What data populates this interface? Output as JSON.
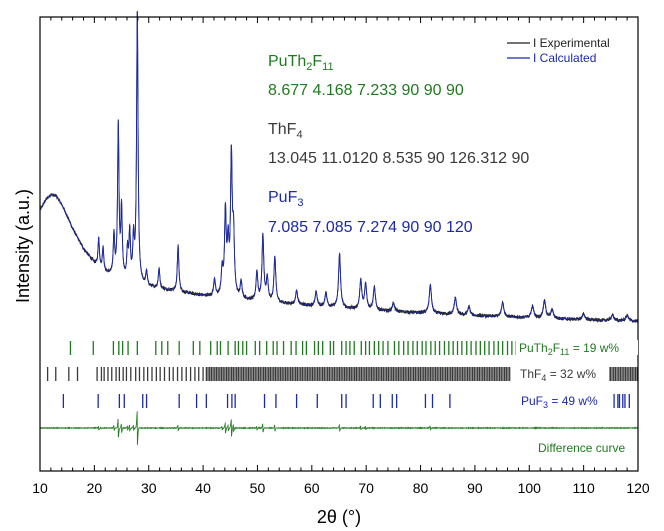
{
  "chart_data": {
    "type": "line",
    "xlabel": "2θ (°)",
    "ylabel": "Intensity (a.u.)",
    "xlim": [
      10,
      120
    ],
    "x_ticks": [
      10,
      20,
      30,
      40,
      50,
      60,
      70,
      80,
      90,
      100,
      110,
      120
    ],
    "y_ticks_labeled": false,
    "legend": {
      "placement": "top-right",
      "entries": [
        {
          "label": "I Experimental",
          "color": "#222222"
        },
        {
          "label": "I Calculated",
          "color": "#1c2aa8"
        }
      ]
    },
    "phases": [
      {
        "formula_main": "PuTh",
        "formula_sub1": "2",
        "formula_mid": "F",
        "formula_sub2": "11",
        "cell": "8.677 4.168 7.233 90 90 90",
        "color": "#1f7a1f",
        "tick_label_main": "PuTh",
        "tick_label_sub1": "2",
        "tick_label_mid": "F",
        "tick_label_sub2": "11",
        "fraction_text": " = 19 w%"
      },
      {
        "formula_main": "ThF",
        "formula_sub1": "4",
        "cell": "13.045 11.0120 8.535 90 126.312 90",
        "color": "#3a3a3a",
        "tick_label_main": "ThF",
        "tick_label_sub1": "4",
        "fraction_text": " = 32 w%"
      },
      {
        "formula_main": "PuF",
        "formula_sub1": "3",
        "cell": "7.085 7.085 7.274 90 90 120",
        "color": "#1c2aa8",
        "tick_label_main": "PuF",
        "tick_label_sub1": "3",
        "fraction_text": " = 49 w%"
      }
    ],
    "difference_label": "Difference curve",
    "series": [
      {
        "name": "I Experimental",
        "color": "#222222"
      },
      {
        "name": "I Calculated",
        "color": "#1c2aa8",
        "background": [
          [
            10,
            0.42
          ],
          [
            11,
            0.455
          ],
          [
            12,
            0.475
          ],
          [
            13,
            0.47
          ],
          [
            14,
            0.44
          ],
          [
            15,
            0.4
          ],
          [
            16,
            0.355
          ],
          [
            18,
            0.285
          ],
          [
            20,
            0.235
          ],
          [
            22,
            0.2
          ],
          [
            25,
            0.175
          ],
          [
            30,
            0.15
          ],
          [
            35,
            0.135
          ],
          [
            40,
            0.12
          ],
          [
            50,
            0.1
          ],
          [
            60,
            0.085
          ],
          [
            70,
            0.07
          ],
          [
            80,
            0.06
          ],
          [
            90,
            0.05
          ],
          [
            100,
            0.043
          ],
          [
            110,
            0.036
          ],
          [
            120,
            0.03
          ]
        ],
        "peaks": [
          [
            20.8,
            0.1
          ],
          [
            21.6,
            0.08
          ],
          [
            23.6,
            0.14
          ],
          [
            24.4,
            0.53
          ],
          [
            25.0,
            0.24
          ],
          [
            26.1,
            0.1
          ],
          [
            26.5,
            0.16
          ],
          [
            27.2,
            0.14
          ],
          [
            27.9,
            0.95
          ],
          [
            29.6,
            0.05
          ],
          [
            31.9,
            0.07
          ],
          [
            35.4,
            0.16
          ],
          [
            42.1,
            0.06
          ],
          [
            43.5,
            0.09
          ],
          [
            44.1,
            0.29
          ],
          [
            44.6,
            0.17
          ],
          [
            45.2,
            0.48
          ],
          [
            45.6,
            0.2
          ],
          [
            47.0,
            0.06
          ],
          [
            49.9,
            0.1
          ],
          [
            51.0,
            0.23
          ],
          [
            51.8,
            0.08
          ],
          [
            53.2,
            0.16
          ],
          [
            57.2,
            0.05
          ],
          [
            60.8,
            0.05
          ],
          [
            62.6,
            0.05
          ],
          [
            65.1,
            0.19
          ],
          [
            69.0,
            0.1
          ],
          [
            69.9,
            0.09
          ],
          [
            71.5,
            0.08
          ],
          [
            75.0,
            0.03
          ],
          [
            81.8,
            0.1
          ],
          [
            86.4,
            0.06
          ],
          [
            88.9,
            0.03
          ],
          [
            95.1,
            0.05
          ],
          [
            100.6,
            0.04
          ],
          [
            102.8,
            0.06
          ],
          [
            104.2,
            0.03
          ],
          [
            110.0,
            0.02
          ],
          [
            115.3,
            0.02
          ],
          [
            118.0,
            0.02
          ]
        ]
      }
    ],
    "reflections": [
      [
        15.6,
        19.8,
        23.5,
        24.5,
        25.2,
        26.2,
        27.9,
        31.3,
        32.4,
        33.5,
        35.6,
        38.2,
        39.4,
        41.4,
        42.6,
        43.2,
        44.6,
        45.9,
        46.5,
        47.3,
        48.0,
        49.6,
        50.4,
        51.7,
        52.9,
        53.6,
        54.8,
        56.2,
        57.1,
        58.3,
        59.0,
        60.5,
        61.2,
        62.0,
        63.4,
        64.0,
        65.5,
        66.3,
        67.0,
        67.8,
        69.1,
        69.9,
        70.6,
        71.5,
        72.3,
        73.1,
        74.0,
        75.2,
        76.0,
        76.9,
        77.7,
        78.6,
        79.4,
        80.3,
        81.0,
        81.9,
        82.7,
        83.5,
        84.4,
        85.2,
        86.0,
        86.8,
        87.6,
        88.5,
        89.3,
        90.2,
        91.0,
        91.8,
        92.6,
        93.5,
        94.3,
        95.1,
        96.0,
        96.8,
        97.6
      ],
      [
        11.4,
        12.9,
        15.3,
        16.9,
        20.5,
        21.3,
        21.8,
        22.5,
        23.2,
        24.0,
        24.6,
        25.3,
        25.9,
        26.7,
        27.6,
        28.3,
        29.1,
        29.8,
        30.6,
        31.4,
        32.1,
        32.9,
        33.8,
        34.5,
        35.3,
        36.1,
        36.9,
        37.7,
        38.5,
        39.2,
        40.0
      ],
      [
        14.3,
        20.7,
        24.6,
        25.5,
        28.9,
        29.6,
        35.6,
        38.8,
        40.6,
        44.5,
        45.3,
        45.9,
        51.3,
        53.4,
        57.2,
        61.0,
        65.5,
        66.3,
        71.3,
        72.6,
        74.8,
        75.6,
        80.9,
        82.2,
        85.4
      ]
    ],
    "reflections_dense_ranges": [
      [],
      [
        [
          40.6,
          96.6
        ],
        [
          111.5,
          120.0
        ]
      ],
      []
    ],
    "reflections_dense_step": [
      0,
      0.31,
      0
    ],
    "reflections_extra_tail": [
      [],
      [],
      [
        113.3,
        114.0,
        116.6,
        117.6
      ]
    ]
  }
}
